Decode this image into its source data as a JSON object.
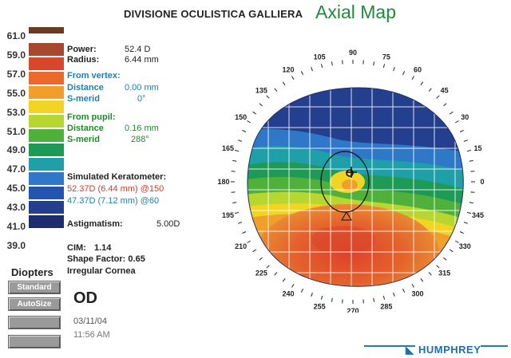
{
  "header": {
    "org": "DIVISIONE OCULISTICA GALLIERA",
    "title": "Axial Map"
  },
  "scale": {
    "labels": [
      "61.0",
      "59.0",
      "57.0",
      "55.0",
      "53.0",
      "51.0",
      "49.0",
      "47.0",
      "45.0",
      "43.0",
      "41.0",
      "39.0"
    ],
    "colors": [
      "#6b3a22",
      "#a9472e",
      "#d8462b",
      "#e96a2c",
      "#f0a02a",
      "#f2d524",
      "#b7d62f",
      "#4fb03a",
      "#1f9a56",
      "#1fa0a8",
      "#2f78c8",
      "#2255b0",
      "#253f8f",
      "#1e2d6e"
    ],
    "unit": "Diopters"
  },
  "info": {
    "power_label": "Power:",
    "power_value": "52.4 D",
    "radius_label": "Radius:",
    "radius_value": "6.44 mm",
    "vertex_heading": "From vertex:",
    "vertex_distance_label": "Distance",
    "vertex_distance_value": "0.00 mm",
    "vertex_smerid_label": "S-merid",
    "vertex_smerid_value": "0°",
    "pupil_heading": "From pupil:",
    "pupil_distance_label": "Distance",
    "pupil_distance_value": "0.16 mm",
    "pupil_smerid_label": "S-merid",
    "pupil_smerid_value": "288°",
    "simk_heading": "Simulated Keratometer:",
    "simk_1": "52.37D (6.44 mm) @150",
    "simk_2": "47.37D (7.12 mm) @60",
    "astig_label": "Astigmatism:",
    "astig_value": "5.00D",
    "cim_label": "CIM:",
    "cim_value": "1.14",
    "shape_label": "Shape Factor:",
    "shape_value": "0.65",
    "cornea_note": "Irregular Cornea"
  },
  "buttons": {
    "standard": "Standard",
    "autosize": "AutoSize"
  },
  "exam": {
    "eye": "OD",
    "date": "03/11/04",
    "time": "11:56 AM"
  },
  "map": {
    "angles": [
      "90",
      "75",
      "60",
      "45",
      "30",
      "15",
      "0",
      "345",
      "330",
      "315",
      "300",
      "285",
      "270",
      "255",
      "240",
      "225",
      "210",
      "195",
      "180",
      "165",
      "150",
      "135",
      "120",
      "105"
    ]
  },
  "brand": "HUMPHREY"
}
